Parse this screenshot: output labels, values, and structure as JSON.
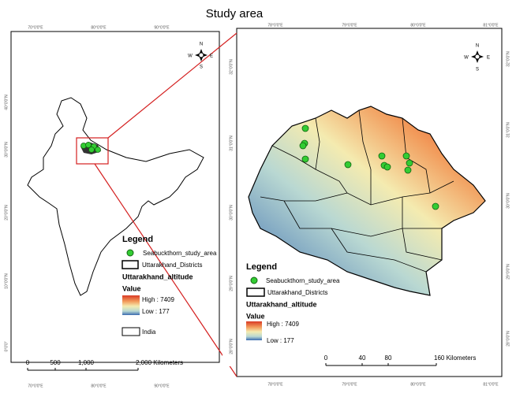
{
  "title": "Study area",
  "left_map": {
    "top_labels": [
      "70°0'0\"E",
      "80°0'0\"E",
      "90°0'0\"E"
    ],
    "bottom_labels": [
      "70°0'0\"E",
      "80°0'0\"E",
      "90°0'0\"E"
    ],
    "side_labels": [
      "40°0'0\"N",
      "30°0'0\"N",
      "20°0'0\"N",
      "10°0'0\"N",
      "0°0'0\""
    ],
    "compass": {
      "n": "N",
      "s": "S",
      "e": "E",
      "w": "W"
    },
    "legend": {
      "title": "Legend",
      "points": "Seabuckthorn_study_area",
      "districts": "Uttarakhand_Districts",
      "altitude": "Uttarakhand_altitude",
      "value": "Value",
      "high": "High : 7409",
      "low": "Low : 177",
      "country": "India"
    },
    "scale": [
      "0",
      "500",
      "1,000",
      "2,000 Kilometers"
    ]
  },
  "right_map": {
    "top_labels": [
      "78°0'0\"E",
      "79°0'0\"E",
      "80°0'0\"E",
      "81°0'0\"E"
    ],
    "bottom_labels": [
      "78°0'0\"E",
      "79°0'0\"E",
      "80°0'0\"E",
      "81°0'0\"E"
    ],
    "left_labels": [
      "32°0'0\"N",
      "31°0'0\"N",
      "30°0'0\"N",
      "29°0'0\"N",
      "28°0'0\"N"
    ],
    "right_labels": [
      "32°0'0\"N",
      "31°0'0\"N",
      "30°0'0\"N",
      "29°0'0\"N",
      "28°0'0\"N"
    ],
    "compass": {
      "n": "N",
      "s": "S",
      "e": "E",
      "w": "W"
    },
    "legend": {
      "title": "Legend",
      "points": "Seabuckthorn_study_area",
      "districts": "Uttarakhand_Districts",
      "altitude": "Uttarakhand_altitude",
      "value": "Value",
      "high": "High : 7409",
      "low": "Low : 177"
    },
    "scale": [
      "0",
      "40",
      "80",
      "160 Kilometers"
    ]
  }
}
